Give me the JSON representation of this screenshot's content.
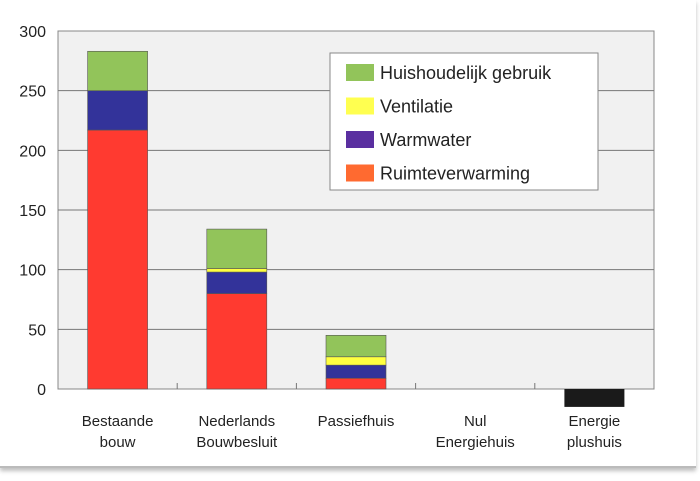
{
  "chart_data": {
    "type": "bar",
    "stacked": true,
    "title": "",
    "xlabel": "",
    "ylabel": "",
    "ylim": [
      -20,
      300
    ],
    "yticks": [
      0,
      50,
      100,
      150,
      200,
      250,
      300
    ],
    "grid": true,
    "legend_placement": "top-right",
    "categories": [
      [
        "Bestaande",
        "bouw"
      ],
      [
        "Nederlands",
        "Bouwbesluit"
      ],
      [
        "Passiefhuis"
      ],
      [
        "Nul",
        "Energiehuis"
      ],
      [
        "Energie",
        "plushuis"
      ]
    ],
    "series": [
      {
        "name": "Ruimteverwarming",
        "color": "#ff3a30",
        "legend_color": "#ff6a30",
        "values": [
          217,
          80,
          9,
          0,
          0
        ]
      },
      {
        "name": "Warmwater",
        "color": "#33339a",
        "legend_color": "#5a2fa0",
        "values": [
          33,
          18,
          11,
          0,
          0
        ]
      },
      {
        "name": "Ventilatie",
        "color": "#ffff40",
        "legend_color": "#ffff50",
        "values": [
          0,
          3,
          7,
          0,
          0
        ]
      },
      {
        "name": "Huishoudelijk gebruik",
        "color": "#92c45a",
        "legend_color": "#92c45a",
        "values": [
          33,
          33,
          18,
          0,
          0
        ]
      }
    ],
    "negative_bar": {
      "color": "#1a1a1a",
      "values": [
        0,
        0,
        0,
        0,
        -15
      ]
    },
    "legend_order": [
      "Huishoudelijk gebruik",
      "Ventilatie",
      "Warmwater",
      "Ruimteverwarming"
    ]
  }
}
